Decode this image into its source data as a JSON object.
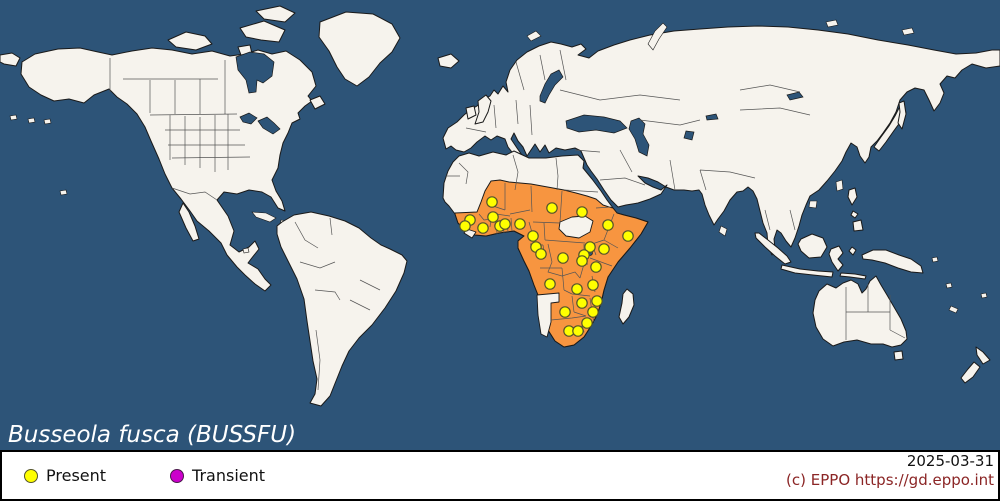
{
  "title": {
    "text": "Busseola fusca (BUSSFU)"
  },
  "legend": {
    "present": "Present",
    "transient": "Transient"
  },
  "footer": {
    "date": "2025-03-31",
    "copyright": "(c) EPPO https://gd.eppo.int"
  },
  "colors": {
    "ocean": "#2d5478",
    "land": "#f6f3ed",
    "coast": "#1a1a1a",
    "inner_border": "#555555",
    "present_country": "#f79540",
    "present_dot": "#ffff00",
    "transient_dot": "#cc00cc",
    "dot_stroke": "#55552a",
    "copyright_text": "#8b2525"
  },
  "map": {
    "dot_radius": 5.2,
    "present_points": [
      [
        492,
        202
      ],
      [
        493,
        217
      ],
      [
        470,
        220
      ],
      [
        465,
        226
      ],
      [
        483,
        228
      ],
      [
        500,
        226
      ],
      [
        505,
        224
      ],
      [
        520,
        224
      ],
      [
        552,
        208
      ],
      [
        533,
        236
      ],
      [
        536,
        247
      ],
      [
        541,
        254
      ],
      [
        582,
        212
      ],
      [
        608,
        225
      ],
      [
        628,
        236
      ],
      [
        590,
        247
      ],
      [
        604,
        249
      ],
      [
        584,
        255
      ],
      [
        582,
        261
      ],
      [
        563,
        258
      ],
      [
        596,
        267
      ],
      [
        550,
        284
      ],
      [
        577,
        289
      ],
      [
        593,
        285
      ],
      [
        582,
        303
      ],
      [
        597,
        301
      ],
      [
        565,
        312
      ],
      [
        593,
        312
      ],
      [
        587,
        323
      ],
      [
        569,
        331
      ],
      [
        578,
        331
      ]
    ],
    "transient_points": []
  }
}
